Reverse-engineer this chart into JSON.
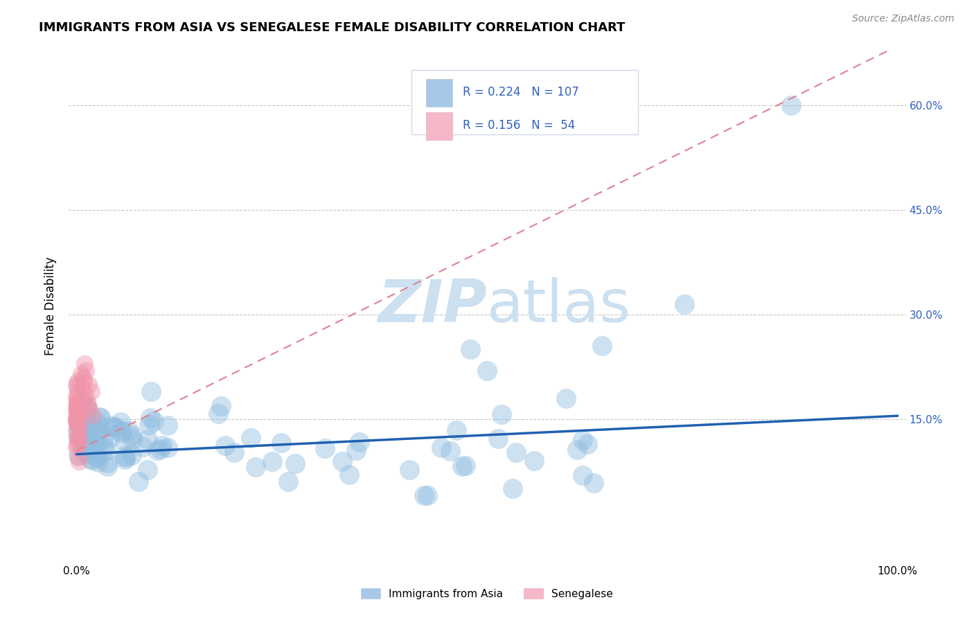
{
  "title": "IMMIGRANTS FROM ASIA VS SENEGALESE FEMALE DISABILITY CORRELATION CHART",
  "source": "Source: ZipAtlas.com",
  "ylabel": "Female Disability",
  "legend_bottom": [
    "Immigrants from Asia",
    "Senegalese"
  ],
  "R_blue": 0.224,
  "N_blue": 107,
  "R_pink": 0.156,
  "N_pink": 54,
  "blue_scatter_color": "#90bde0",
  "pink_scatter_color": "#f094aa",
  "blue_line_color": "#2060b0",
  "pink_line_color": "#e08090",
  "legend_blue_fill": "#a8c8e8",
  "legend_pink_fill": "#f4b8c8",
  "text_blue_color": "#3060c0",
  "grid_color": "#c8c8c8",
  "watermark_color": "#cce0f0",
  "blue_line_slope": 0.055,
  "blue_line_intercept": 0.1,
  "pink_line_slope": 0.58,
  "pink_line_intercept": 0.105,
  "ylim_low": -0.055,
  "ylim_high": 0.68,
  "xlim_low": -0.01,
  "xlim_high": 1.01
}
